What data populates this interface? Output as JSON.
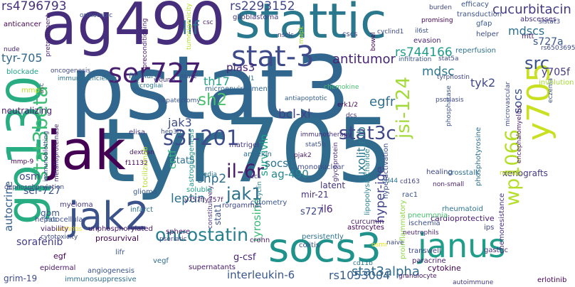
{
  "words": [
    {
      "text": "pstat3",
      "color": "#31668e"
    },
    {
      "text": "tyr705",
      "color": "#306b8e"
    },
    {
      "text": "ag490",
      "color": "#472e7c"
    },
    {
      "text": "stattic",
      "color": "#2a788e"
    },
    {
      "text": "gp130",
      "color": "#27ad81"
    },
    {
      "text": "jak",
      "color": "#440154"
    },
    {
      "text": "jak2",
      "color": "#3b528b"
    },
    {
      "text": "socs3",
      "color": "#20928c"
    },
    {
      "text": "janus",
      "color": "#1f9e89"
    },
    {
      "text": "stat-3",
      "color": "#3e4a89"
    },
    {
      "text": "ser727",
      "color": "#481f70"
    },
    {
      "text": "y705",
      "color": "#c8e020"
    },
    {
      "text": "wp1066",
      "color": "#b5de2b"
    },
    {
      "text": "stat3beta",
      "color": "#3cbc75"
    },
    {
      "text": "s3i-201",
      "color": "#3e4c8a"
    },
    {
      "text": "oncostatin",
      "color": "#277f8e"
    },
    {
      "text": "il-6r",
      "color": "#481a6c"
    },
    {
      "text": "jak1",
      "color": "#2c718e"
    },
    {
      "text": "lif",
      "color": "#2d708e"
    },
    {
      "text": "stat3c",
      "color": "#3f4788"
    },
    {
      "text": "rs4796793",
      "color": "#462f7c"
    },
    {
      "text": "cucurbitacin",
      "color": "#443a83"
    },
    {
      "text": "rs2293152",
      "color": "#404688"
    },
    {
      "text": "antitumor",
      "color": "#482576"
    },
    {
      "text": "th17",
      "color": "#20a386"
    },
    {
      "text": "pias3",
      "color": "#482374"
    },
    {
      "text": "rs744166",
      "color": "#1e9c89"
    },
    {
      "text": "mdscs",
      "color": "#2d718e"
    },
    {
      "text": "s727a",
      "color": "#38588c"
    },
    {
      "text": "src",
      "color": "#3b528b"
    },
    {
      "text": "y705f",
      "color": "#453882"
    },
    {
      "text": "tyr-705",
      "color": "#30698e"
    },
    {
      "text": "sh2",
      "color": "#4ac16d"
    },
    {
      "text": "jsi-124",
      "color": "#a2da37"
    },
    {
      "text": "mdsc",
      "color": "#2a788e"
    },
    {
      "text": "tyk2",
      "color": "#3f4889"
    },
    {
      "text": "socs",
      "color": "#3b528b"
    },
    {
      "text": "egfr",
      "color": "#2e6f8e"
    },
    {
      "text": "ruxolitinib",
      "color": "#2a778e"
    },
    {
      "text": "cntf",
      "color": "#35b779"
    },
    {
      "text": "survivin",
      "color": "#1fa188"
    },
    {
      "text": "bcl-xl",
      "color": "#424086"
    },
    {
      "text": "jak3",
      "color": "#3d4d8a"
    },
    {
      "text": "neutralizing",
      "color": "#481f70"
    },
    {
      "text": "hyper-ige",
      "color": "#414287"
    },
    {
      "text": "stat5",
      "color": "#2d718e"
    },
    {
      "text": "socs1",
      "color": "#2c738e"
    },
    {
      "text": "osm",
      "color": "#3f4889"
    },
    {
      "text": "shp2",
      "color": "#2e6d8e"
    },
    {
      "text": "tyrosine",
      "color": "#3aba76"
    },
    {
      "text": "ag-490",
      "color": "#24868e"
    },
    {
      "text": "ser-727",
      "color": "#3b528b"
    },
    {
      "text": "leptin",
      "color": "#2c728e"
    },
    {
      "text": "il6",
      "color": "#482677"
    },
    {
      "text": "latent",
      "color": "#46327e"
    },
    {
      "text": "mir-21",
      "color": "#46307e"
    },
    {
      "text": "s727",
      "color": "#3e4989"
    },
    {
      "text": "autocrine",
      "color": "#355f8d"
    },
    {
      "text": "stat1",
      "color": "#3a548c"
    },
    {
      "text": "sorafenib",
      "color": "#433e85"
    },
    {
      "text": "gbm",
      "color": "#3b528b"
    },
    {
      "text": "g-csf",
      "color": "#482475"
    },
    {
      "text": "stat3alpha",
      "color": "#2f6c8e"
    },
    {
      "text": "interleukin-6",
      "color": "#39568c"
    },
    {
      "text": "rs1053004",
      "color": "#355e8d"
    },
    {
      "text": "cardioprotective",
      "color": "#481b6d"
    },
    {
      "text": "grim-19",
      "color": "#3e4a89"
    },
    {
      "text": "egf",
      "color": "#440154"
    },
    {
      "text": "unphosphorylated",
      "color": "#481668"
    },
    {
      "text": "astrocytes",
      "color": "#440154"
    },
    {
      "text": "phosphotyrosine",
      "color": "#2d708e"
    },
    {
      "text": "xenografts",
      "color": "#443983"
    },
    {
      "text": "hyperactivation",
      "color": "#3c4f8a"
    },
    {
      "text": "lipopolysaccharide",
      "color": "#26818e"
    },
    {
      "text": "immunosuppressive",
      "color": "#2e6e8e"
    },
    {
      "text": "supernatants",
      "color": "#48186a"
    },
    {
      "text": "epidermal",
      "color": "#481769"
    },
    {
      "text": "angiogenesis",
      "color": "#3b528b"
    },
    {
      "text": "cytotoxicity",
      "color": "#3e4989"
    },
    {
      "text": "arthritis",
      "color": "#fde725"
    },
    {
      "text": "prosurvival",
      "color": "#440154"
    },
    {
      "text": "crohn",
      "color": "#481a6c"
    },
    {
      "text": "colitis",
      "color": "#3b528b"
    },
    {
      "text": "persistently",
      "color": "#2c728e"
    },
    {
      "text": "cd11b",
      "color": "#2a768e"
    },
    {
      "text": "transwell",
      "color": "#3f4889"
    },
    {
      "text": "paracrine",
      "color": "#481d6f"
    },
    {
      "text": "cytokine",
      "color": "#440154"
    },
    {
      "text": "granulocyte",
      "color": "#481668"
    },
    {
      "text": "autoimmune",
      "color": "#453781"
    },
    {
      "text": "erlotinib",
      "color": "#440154"
    },
    {
      "text": "proinflammatory",
      "color": "#8fd744"
    },
    {
      "text": "osmr",
      "color": "#e5e419"
    },
    {
      "text": "ips",
      "color": "#414487"
    },
    {
      "text": "naive",
      "color": "#3e4a89"
    },
    {
      "text": "neutrophils",
      "color": "#482677"
    },
    {
      "text": "ischemia",
      "color": "#3d4e8a"
    },
    {
      "text": "pneumonia",
      "color": "#46c06f"
    },
    {
      "text": "rheumatoid",
      "color": "#2c728e"
    },
    {
      "text": "chemoresistance",
      "color": "#46327e"
    },
    {
      "text": "gastric",
      "color": "#46307e"
    },
    {
      "text": "rac1",
      "color": "#3b528b"
    },
    {
      "text": "curcumin",
      "color": "#481f70"
    },
    {
      "text": "mononuclear",
      "color": "#3e4989"
    },
    {
      "text": "annexin",
      "color": "#2e6e8e"
    },
    {
      "text": "matrigel",
      "color": "#443983"
    },
    {
      "text": "iecs",
      "color": "#3f4889"
    },
    {
      "text": "sphere",
      "color": "#481b6d"
    },
    {
      "text": "psoriatic",
      "color": "#414487"
    },
    {
      "text": "lifr",
      "color": "#3a548c"
    },
    {
      "text": "constitutively",
      "color": "#46337f"
    },
    {
      "text": "cyclin",
      "color": "#26818e"
    },
    {
      "text": "vegf",
      "color": "#2f6c8e"
    },
    {
      "text": "rorgammat",
      "color": "#3f4788"
    },
    {
      "text": "soluble",
      "color": "#1fa187"
    },
    {
      "text": "y757f/y757f",
      "color": "#481a6c"
    },
    {
      "text": "cytometry",
      "color": "#3a548c"
    },
    {
      "text": "infarct",
      "color": "#2d708e"
    },
    {
      "text": "glioma",
      "color": "#38598c"
    },
    {
      "text": "myeloma",
      "color": "#453581"
    },
    {
      "text": "hepatocellular",
      "color": "#3d4d8a"
    },
    {
      "text": "dephosphorylation",
      "color": "#3f4889"
    },
    {
      "text": "viability",
      "color": "#481b6d"
    },
    {
      "text": "hcc",
      "color": "#31688e"
    },
    {
      "text": "mmp-9",
      "color": "#440154"
    },
    {
      "text": "immunoblotting",
      "color": "#3e4989"
    },
    {
      "text": "metalloproteinase",
      "color": "#472c7a"
    },
    {
      "text": "f11132",
      "color": "#440154"
    },
    {
      "text": "dextran",
      "color": "#481467"
    },
    {
      "text": "elisa",
      "color": "#443a83"
    },
    {
      "text": "hep3b",
      "color": "#3b528b"
    },
    {
      "text": "tocilizumab",
      "color": "#b5de2b"
    },
    {
      "text": "astrogliogenesis",
      "color": "#21908d"
    },
    {
      "text": "hepatectomy",
      "color": "#3a548c"
    },
    {
      "text": "media",
      "color": "#2a768e"
    },
    {
      "text": "pjak2",
      "color": "#481b6d"
    },
    {
      "text": "stat5b",
      "color": "#3b528b"
    },
    {
      "text": "immunotherapy",
      "color": "#46307e"
    },
    {
      "text": "antiapoptotic",
      "color": "#355e8d"
    },
    {
      "text": "chemokine",
      "color": "#46c06f"
    },
    {
      "text": "cd44",
      "color": "#2d718e"
    },
    {
      "text": "glycoprotein",
      "color": "#482878"
    },
    {
      "text": "erk1/2",
      "color": "#440154"
    },
    {
      "text": "dcs",
      "color": "#46327e"
    },
    {
      "text": "cd163",
      "color": "#414487"
    },
    {
      "text": "healing",
      "color": "#3f4788"
    },
    {
      "text": "crosstalk",
      "color": "#2d708e"
    },
    {
      "text": "non-small",
      "color": "#481f70"
    },
    {
      "text": "mstat1",
      "color": "#bddf26"
    },
    {
      "text": "phosphatase",
      "color": "#3b528b"
    },
    {
      "text": "psoriasis",
      "color": "#3e4989"
    },
    {
      "text": "tyrphostin",
      "color": "#404688"
    },
    {
      "text": "microvascular",
      "color": "#3e4a89"
    },
    {
      "text": "encephalomyelitis",
      "color": "#481a6c"
    },
    {
      "text": "eczema",
      "color": "#3a548c"
    },
    {
      "text": "involution",
      "color": "#a5db36"
    },
    {
      "text": "rs6503695",
      "color": "#3f4889"
    },
    {
      "text": "mtt",
      "color": "#481b6d"
    },
    {
      "text": "helper",
      "color": "#3e4c8a"
    },
    {
      "text": "gfap",
      "color": "#38588c"
    },
    {
      "text": "reperfusion",
      "color": "#2c728e"
    },
    {
      "text": "infiltration",
      "color": "#3a548c"
    },
    {
      "text": "stat5a",
      "color": "#3e4989"
    },
    {
      "text": "fibrillary",
      "color": "#2f6c8e"
    },
    {
      "text": "wound",
      "color": "#443a83"
    },
    {
      "text": "stat2",
      "color": "#3b528b"
    },
    {
      "text": "microgliai",
      "color": "#2a788e"
    },
    {
      "text": "d1",
      "color": "#2c728e"
    },
    {
      "text": "microenvironment",
      "color": "#33638d"
    },
    {
      "text": "immunodeficiency",
      "color": "#2d708e"
    },
    {
      "text": "blockade",
      "color": "#1fa088"
    },
    {
      "text": "oncogenesis",
      "color": "#3e4a89"
    },
    {
      "text": "mmp2",
      "color": "#bddf26"
    },
    {
      "text": "asc",
      "color": "#3a548c"
    },
    {
      "text": "nude",
      "color": "#482475"
    },
    {
      "text": "pretreatment",
      "color": "#481f70"
    },
    {
      "text": "anticancer",
      "color": "#440154"
    },
    {
      "text": "orthotopic",
      "color": "#3b528b"
    },
    {
      "text": "glioblastoma",
      "color": "#443a83"
    },
    {
      "text": "preconditioning",
      "color": "#481b6d"
    },
    {
      "text": "csc",
      "color": "#481f70"
    },
    {
      "text": "nsclc",
      "color": "#414487"
    },
    {
      "text": "cscs",
      "color": "#404588"
    },
    {
      "text": "tumorigenicity",
      "color": "#b8de29"
    },
    {
      "text": "mapk",
      "color": "#a8db34"
    },
    {
      "text": "cyclind1",
      "color": "#3e4989"
    },
    {
      "text": "bowel",
      "color": "#440154"
    },
    {
      "text": "il6st",
      "color": "#3b528b"
    },
    {
      "text": "evasion",
      "color": "#481f70"
    },
    {
      "text": "burden",
      "color": "#3f4788"
    },
    {
      "text": "efficacy",
      "color": "#3a548c"
    },
    {
      "text": "transduction",
      "color": "#3b528b"
    },
    {
      "text": "promising",
      "color": "#440154"
    },
    {
      "text": "abscesses",
      "color": "#46327e"
    },
    {
      "text": "sistat3",
      "color": "#3e4989"
    }
  ]
}
